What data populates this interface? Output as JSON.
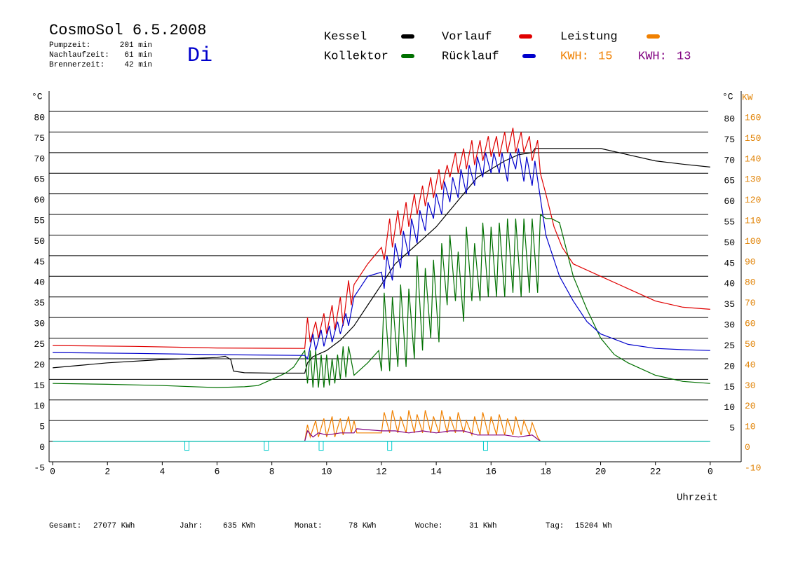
{
  "chart_data": {
    "type": "line",
    "title": "CosmoSol 6.5.2008",
    "weekday": "Di",
    "stats": [
      {
        "label": "Pumpzeit:",
        "value": "201 min"
      },
      {
        "label": "Nachlaufzeit:",
        "value": "61 min"
      },
      {
        "label": "Brennerzeit:",
        "value": "42 min"
      }
    ],
    "kwh": [
      {
        "label": "KWH:",
        "value": 15,
        "color": "#f08000"
      },
      {
        "label": "KWH:",
        "value": 13,
        "color": "#800080"
      }
    ],
    "y_unit": "°C",
    "y_unit_right": "°C",
    "y2_unit": "KW",
    "xlabel": "Uhrzeit",
    "totals": [
      {
        "label": "Gesamt:",
        "value": "27077 KWh"
      },
      {
        "label": "Jahr:",
        "value": "635 KWh"
      },
      {
        "label": "Monat:",
        "value": "78 KWh"
      },
      {
        "label": "Woche:",
        "value": "31 KWh"
      },
      {
        "label": "Tag:",
        "value": "15204 Wh"
      }
    ],
    "xlim": [
      -0.13,
      25.13
    ],
    "xticks": [
      0,
      2,
      4,
      6,
      8,
      10,
      12,
      14,
      16,
      18,
      20,
      22,
      {
        "value": 24,
        "label": "0"
      }
    ],
    "ylim": [
      -5,
      80
    ],
    "yticks": [
      -5,
      0,
      5,
      10,
      15,
      20,
      25,
      30,
      35,
      40,
      45,
      50,
      55,
      60,
      65,
      70,
      75,
      80
    ],
    "yticks_right": [
      5,
      10,
      15,
      20,
      25,
      30,
      35,
      40,
      45,
      50,
      55,
      60,
      65,
      70,
      75,
      80
    ],
    "y2lim": [
      -10,
      160
    ],
    "y2ticks": [
      -10,
      0,
      10,
      20,
      30,
      40,
      50,
      60,
      70,
      80,
      90,
      100,
      110,
      120,
      130,
      140,
      150,
      160
    ],
    "grid": true,
    "series": [
      {
        "name": "Kessel",
        "color": "#000000",
        "x": [
          0,
          2,
          4,
          6,
          6.3,
          6.4,
          6.5,
          6.6,
          7,
          8,
          9.2,
          9.3,
          9.5,
          10,
          10.5,
          11,
          11.5,
          12,
          12.5,
          13,
          13.5,
          14,
          14.5,
          15,
          15.5,
          16,
          16.5,
          17,
          17.5,
          17.6,
          18,
          19,
          20,
          21,
          22,
          23,
          24
        ],
        "values": [
          17.8,
          19,
          19.8,
          20.3,
          20.6,
          20.2,
          19.8,
          17,
          16.6,
          16.5,
          16.5,
          19,
          20.5,
          22,
          24.5,
          28,
          33,
          38,
          43,
          46,
          49,
          52,
          56,
          60,
          64,
          66,
          68,
          69.5,
          70,
          71,
          71,
          71,
          71,
          69.5,
          68,
          67.2,
          66.5
        ]
      },
      {
        "name": "Vorlauf",
        "color": "#e00000",
        "x": [
          0,
          3,
          6,
          9,
          9.2,
          9.3,
          9.4,
          9.6,
          9.7,
          9.9,
          10,
          10.2,
          10.3,
          10.5,
          10.6,
          10.8,
          10.9,
          11,
          11.5,
          12,
          12.1,
          12.3,
          12.4,
          12.6,
          12.7,
          12.9,
          13,
          13.2,
          13.3,
          13.5,
          13.6,
          13.8,
          13.9,
          14.1,
          14.2,
          14.4,
          14.5,
          14.7,
          14.8,
          15,
          15.1,
          15.3,
          15.4,
          15.6,
          15.7,
          15.9,
          16,
          16.2,
          16.3,
          16.5,
          16.6,
          16.8,
          16.9,
          17.1,
          17.2,
          17.4,
          17.5,
          17.7,
          17.8,
          18,
          18.3,
          18.6,
          19,
          20,
          21,
          22,
          23,
          24
        ],
        "values": [
          23.2,
          23,
          22.6,
          22.5,
          22.5,
          30,
          24,
          29,
          25,
          31,
          26,
          33,
          27,
          35,
          28,
          39,
          33,
          38,
          43,
          47,
          44,
          54,
          47,
          56,
          50,
          58,
          52,
          60,
          55,
          62,
          57,
          64,
          59,
          66,
          61,
          67,
          64,
          70,
          65,
          71,
          66,
          73,
          67,
          73,
          68,
          74,
          69,
          74,
          69,
          75,
          70,
          76,
          70,
          75,
          70,
          74,
          68,
          73,
          65,
          60,
          52,
          47,
          43,
          40,
          37,
          34,
          32.5,
          32
        ]
      },
      {
        "name": "Leistung",
        "color": "#f08000",
        "axis": "y2",
        "x": [
          0,
          9.2,
          9.3,
          9.4,
          9.6,
          9.7,
          9.9,
          10,
          10.2,
          10.3,
          10.5,
          10.6,
          10.8,
          10.9,
          11,
          11.1,
          12,
          12.1,
          12.3,
          12.4,
          12.6,
          12.7,
          12.9,
          13,
          13.2,
          13.3,
          13.5,
          13.6,
          13.8,
          13.9,
          14.1,
          14.2,
          14.4,
          14.5,
          14.7,
          14.8,
          15,
          15.1,
          15.3,
          15.4,
          15.6,
          15.7,
          15.9,
          16,
          16.2,
          16.3,
          16.5,
          16.6,
          16.8,
          16.9,
          17.1,
          17.2,
          17.4,
          17.5,
          17.7,
          17.8,
          24
        ],
        "values": [
          0,
          0,
          8,
          2,
          10,
          2,
          11,
          2,
          12,
          2,
          11,
          3,
          12,
          4,
          10,
          4,
          4,
          14,
          4,
          15,
          4,
          12,
          4,
          15,
          4,
          13,
          4,
          15,
          4,
          12,
          4,
          15,
          4,
          12,
          4,
          14,
          4,
          10,
          3,
          12,
          3,
          14,
          3,
          12,
          3,
          13,
          3,
          11,
          3,
          12,
          3,
          10,
          3,
          9,
          2,
          0,
          0
        ]
      },
      {
        "name": "Kollektor",
        "color": "#007000",
        "x": [
          0,
          2,
          4,
          6,
          7,
          7.5,
          8,
          8.5,
          8.8,
          9,
          9.2,
          9.3,
          9.4,
          9.5,
          9.6,
          9.7,
          9.8,
          9.9,
          10,
          10.1,
          10.2,
          10.3,
          10.4,
          10.5,
          10.6,
          10.7,
          10.8,
          11,
          11.5,
          11.9,
          12,
          12.1,
          12.3,
          12.4,
          12.6,
          12.7,
          12.9,
          13,
          13.2,
          13.3,
          13.5,
          13.6,
          13.8,
          13.9,
          14.1,
          14.2,
          14.4,
          14.5,
          14.7,
          14.8,
          15,
          15.1,
          15.3,
          15.4,
          15.6,
          15.7,
          15.9,
          16,
          16.2,
          16.3,
          16.5,
          16.6,
          16.8,
          16.9,
          17.1,
          17.2,
          17.4,
          17.5,
          17.7,
          17.8,
          18,
          18.2,
          18.5,
          19,
          19.5,
          20,
          20.5,
          21,
          22,
          23,
          24
        ],
        "values": [
          14,
          13.8,
          13.5,
          13,
          13.2,
          13.5,
          15,
          16.5,
          18,
          20,
          22,
          14,
          22,
          13,
          22,
          13,
          21,
          13,
          21,
          13.5,
          20,
          14,
          21,
          15,
          23,
          15.5,
          23,
          16,
          19,
          22,
          17,
          36,
          17,
          35,
          18,
          38,
          18,
          37,
          20,
          45,
          22,
          42,
          25,
          44,
          24,
          48,
          33,
          50,
          34,
          46,
          29,
          52,
          34,
          48,
          34,
          53,
          35,
          52,
          35,
          53,
          35,
          54,
          36,
          54,
          35,
          54,
          36,
          54,
          36,
          55,
          54,
          54,
          53,
          40,
          32,
          25,
          21,
          19,
          16,
          14.5,
          14
        ]
      },
      {
        "name": "Rücklauf",
        "color": "#0000cc",
        "x": [
          0,
          3,
          6,
          9,
          9.2,
          9.3,
          9.5,
          9.6,
          9.8,
          9.9,
          10.1,
          10.2,
          10.4,
          10.5,
          10.7,
          10.8,
          11,
          11.5,
          12,
          12.1,
          12.2,
          12.4,
          12.5,
          12.7,
          12.8,
          13,
          13.1,
          13.3,
          13.4,
          13.6,
          13.7,
          13.9,
          14,
          14.2,
          14.3,
          14.5,
          14.6,
          14.8,
          14.9,
          15.1,
          15.2,
          15.4,
          15.5,
          15.7,
          15.8,
          16,
          16.1,
          16.3,
          16.4,
          16.6,
          16.7,
          16.9,
          17,
          17.2,
          17.3,
          17.5,
          17.6,
          17.8,
          18,
          18.5,
          19,
          19.5,
          20,
          21,
          22,
          23,
          24
        ],
        "values": [
          21.5,
          21.3,
          21,
          20.8,
          20.8,
          20,
          26,
          22,
          27,
          23,
          28,
          24,
          29,
          26,
          31,
          28,
          35,
          40,
          41,
          37,
          45,
          39,
          48,
          42,
          51,
          45,
          54,
          48,
          56,
          51,
          58,
          54,
          60,
          55,
          63,
          58,
          64,
          59,
          66,
          60,
          67,
          62,
          69,
          64,
          70,
          65,
          70,
          65,
          70,
          63,
          70,
          66,
          71,
          63,
          69,
          62,
          68,
          59,
          50,
          40,
          34,
          29,
          26,
          23.5,
          22.5,
          22.2,
          22
        ]
      },
      {
        "color": "#800080",
        "axis": "y2",
        "x": [
          9.2,
          9.3,
          9.5,
          9.7,
          10,
          10.5,
          11,
          11.1,
          12,
          12.5,
          13,
          13.5,
          14,
          14.5,
          15,
          15.5,
          16,
          16.5,
          17,
          17.5,
          17.8
        ],
        "values": [
          0,
          5,
          2,
          4,
          3,
          4,
          4,
          6,
          5,
          5,
          4,
          5,
          4,
          5,
          5,
          3,
          3,
          3,
          2,
          3,
          0
        ]
      },
      {
        "color": "#00cccc",
        "x": [
          0,
          24
        ],
        "values": [
          0,
          0
        ],
        "markers": [
          4.9,
          7.8,
          9.8,
          12.3,
          15.8
        ]
      }
    ]
  }
}
